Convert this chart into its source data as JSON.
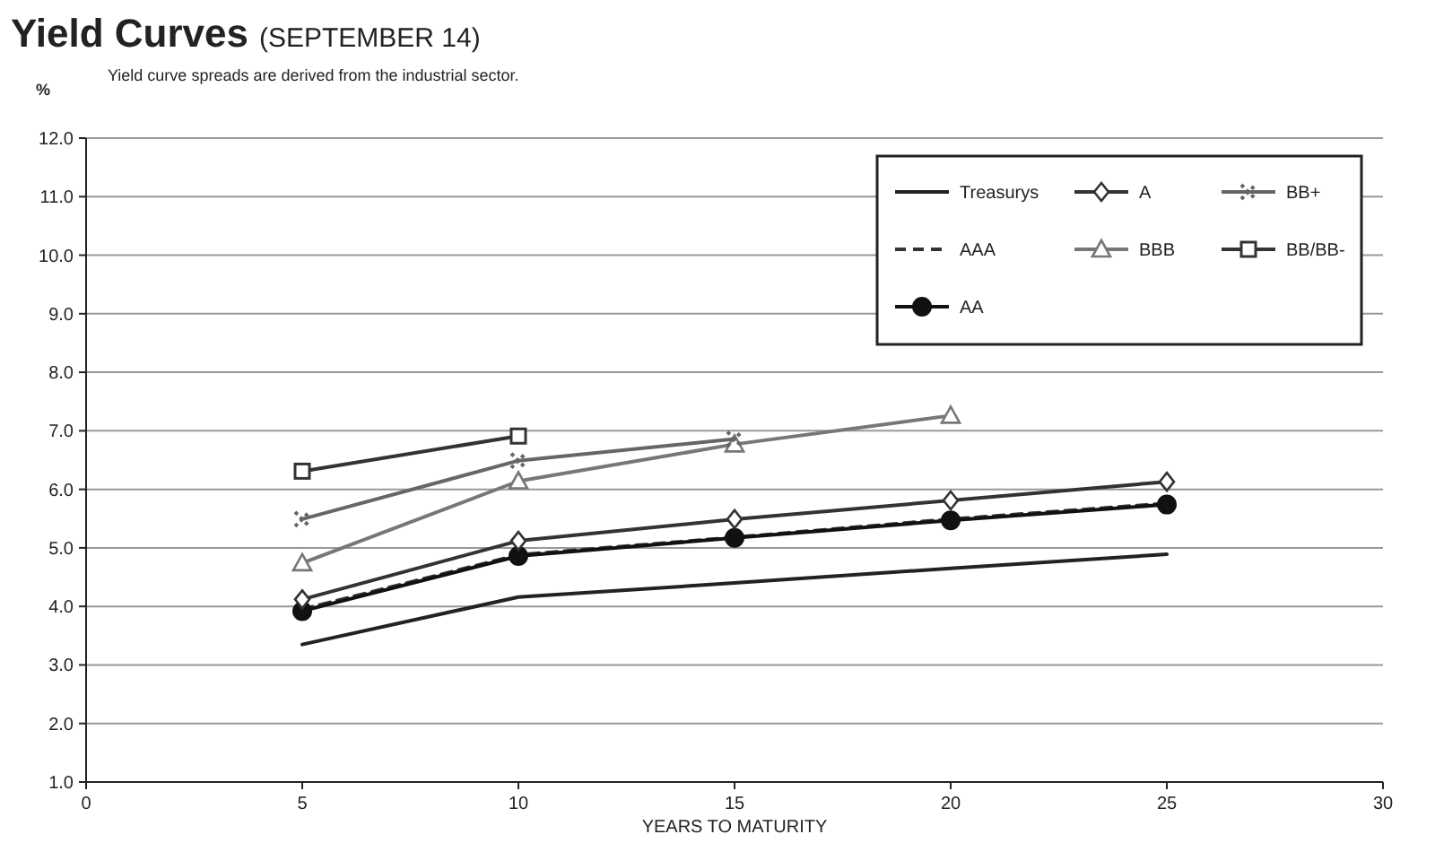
{
  "chart_data": {
    "type": "line",
    "title": "Yield Curves",
    "subtitle": "(SEPTEMBER 14)",
    "annotations": [
      "Yield curve spreads are derived from  the industrial sector."
    ],
    "xlabel": "YEARS TO MATURITY",
    "ylabel": "%",
    "xlim": [
      0,
      30
    ],
    "xticks": [
      0,
      5,
      10,
      15,
      20,
      25,
      30
    ],
    "ylim": [
      1,
      12
    ],
    "yticks": [
      {
        "value": 1,
        "label": "1.0"
      },
      {
        "value": 2,
        "label": "2.0"
      },
      {
        "value": 3,
        "label": "3.0"
      },
      {
        "value": 4,
        "label": "4.0"
      },
      {
        "value": 5,
        "label": "5.0"
      },
      {
        "value": 6,
        "label": "6.0"
      },
      {
        "value": 7,
        "label": "7.0"
      },
      {
        "value": 8,
        "label": "8.0"
      },
      {
        "value": 9,
        "label": "9.0"
      },
      {
        "value": 10,
        "label": "10.0"
      },
      {
        "value": 11,
        "label": "11.0"
      },
      {
        "value": 12,
        "label": "12.0"
      }
    ],
    "grid": "y",
    "legend": "top right",
    "series": [
      {
        "name": "Treasurys",
        "color": "#222222",
        "marker": "none",
        "line_style": "solid",
        "x": [
          5,
          10,
          15,
          20,
          25
        ],
        "values": [
          3.35,
          4.16,
          4.4,
          4.65,
          4.89
        ]
      },
      {
        "name": "AAA",
        "color": "#333333",
        "marker": "none",
        "line_style": "dashed",
        "x": [
          5,
          10,
          15,
          20,
          25
        ],
        "values": [
          3.95,
          4.88,
          5.18,
          5.49,
          5.76
        ]
      },
      {
        "name": "AA",
        "color": "#111111",
        "marker": "circle",
        "line_style": "solid",
        "x": [
          5,
          10,
          15,
          20,
          25
        ],
        "values": [
          3.92,
          4.86,
          5.17,
          5.47,
          5.74
        ]
      },
      {
        "name": "A",
        "color": "#333333",
        "marker": "diamond",
        "line_style": "solid",
        "x": [
          5,
          10,
          15,
          20,
          25
        ],
        "values": [
          4.12,
          5.12,
          5.49,
          5.81,
          6.13
        ]
      },
      {
        "name": "BBB",
        "color": "#777777",
        "marker": "triangle",
        "line_style": "solid",
        "x": [
          5,
          10,
          15,
          20
        ],
        "values": [
          4.74,
          6.14,
          6.77,
          7.26
        ]
      },
      {
        "name": "BB+",
        "color": "#666666",
        "marker": "cross",
        "line_style": "solid",
        "x": [
          5,
          10,
          15
        ],
        "values": [
          5.49,
          6.49,
          6.86
        ]
      },
      {
        "name": "BB/BB-",
        "color": "#333333",
        "marker": "square",
        "line_style": "solid",
        "x": [
          5,
          10
        ],
        "values": [
          6.31,
          6.91
        ]
      }
    ]
  }
}
